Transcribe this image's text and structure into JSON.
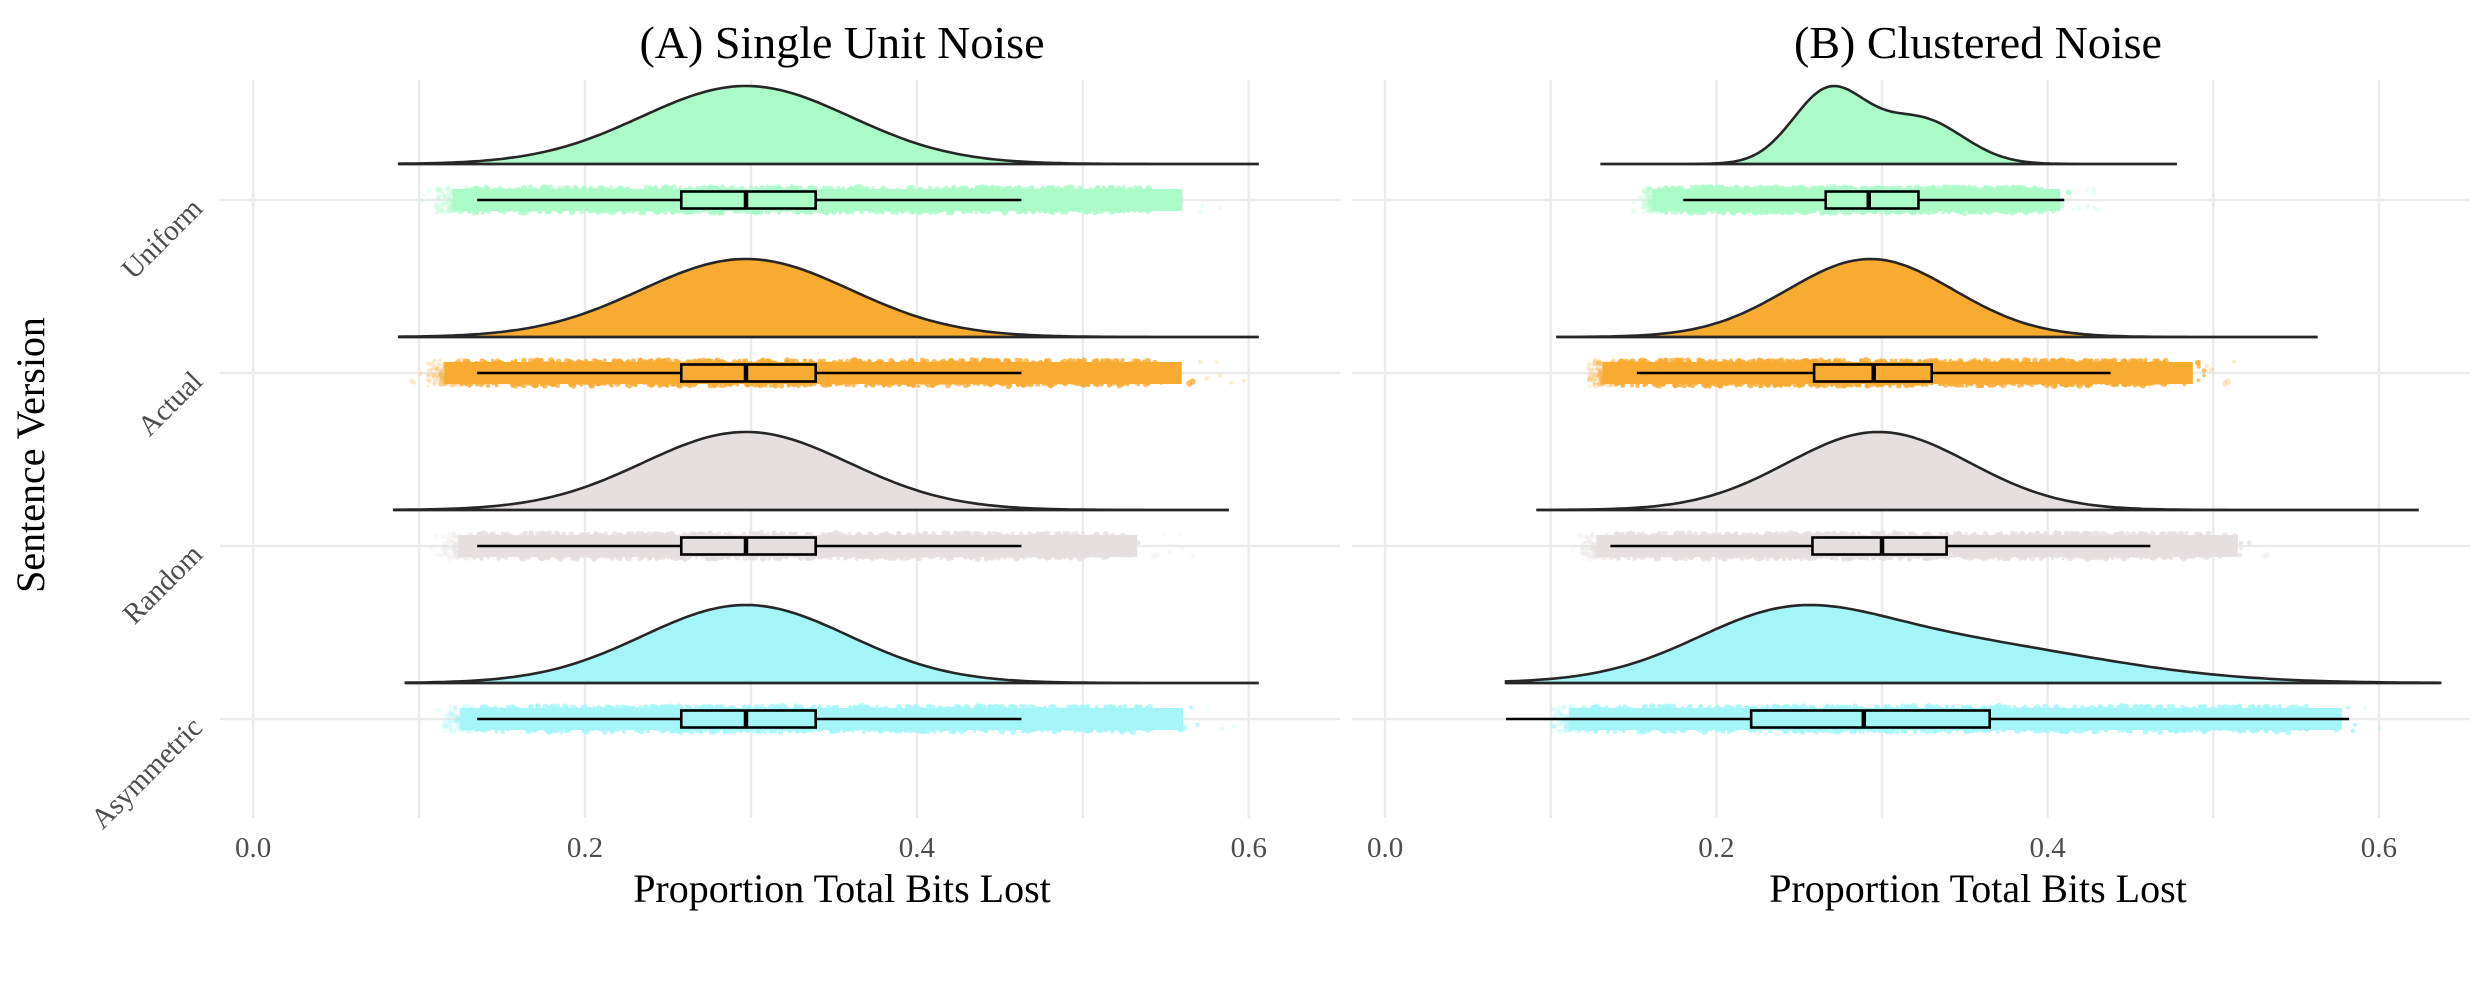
{
  "chart_data": {
    "type": "raincloud",
    "ylabel": "Sentence Version",
    "categories": [
      "Uniform",
      "Actual",
      "Random",
      "Asymmetric"
    ],
    "colors": {
      "Uniform": "#abfbc9",
      "Actual": "#f7ab31",
      "Random": "#e6dfe0",
      "Asymmetric": "#a4f5f8"
    },
    "grid": true,
    "panels": [
      {
        "title": "(A) Single Unit Noise",
        "xlabel": "Proportion Total Bits Lost",
        "xticks": [
          "0.0",
          "0.2",
          "0.4",
          "0.6"
        ],
        "xlim": [
          -0.02,
          0.655
        ],
        "groups": [
          {
            "name": "Uniform",
            "density_range": [
              0.088,
              0.606
            ],
            "points_range": [
              0.1,
              0.6
            ],
            "components": [
              {
                "mean": 0.297,
                "sd": 0.063,
                "weight": 1
              }
            ],
            "box": {
              "whisker_low": 0.135,
              "q1": 0.258,
              "median": 0.297,
              "q3": 0.339,
              "whisker_high": 0.463
            }
          },
          {
            "name": "Actual",
            "density_range": [
              0.088,
              0.606
            ],
            "points_range": [
              0.095,
              0.6
            ],
            "components": [
              {
                "mean": 0.297,
                "sd": 0.063,
                "weight": 1
              }
            ],
            "box": {
              "whisker_low": 0.135,
              "q1": 0.258,
              "median": 0.297,
              "q3": 0.339,
              "whisker_high": 0.463
            }
          },
          {
            "name": "Random",
            "density_range": [
              0.085,
              0.588
            ],
            "points_range": [
              0.105,
              0.57
            ],
            "components": [
              {
                "mean": 0.297,
                "sd": 0.062,
                "weight": 1
              }
            ],
            "box": {
              "whisker_low": 0.135,
              "q1": 0.258,
              "median": 0.297,
              "q3": 0.339,
              "whisker_high": 0.463
            }
          },
          {
            "name": "Asymmetric",
            "density_range": [
              0.092,
              0.606
            ],
            "points_range": [
              0.105,
              0.6
            ],
            "components": [
              {
                "mean": 0.297,
                "sd": 0.062,
                "weight": 1
              }
            ],
            "box": {
              "whisker_low": 0.135,
              "q1": 0.258,
              "median": 0.297,
              "q3": 0.339,
              "whisker_high": 0.463
            }
          }
        ]
      },
      {
        "title": "(B) Clustered Noise",
        "xlabel": "Proportion Total Bits Lost",
        "xticks": [
          "0.0",
          "0.2",
          "0.4",
          "0.6"
        ],
        "xlim": [
          -0.02,
          0.655
        ],
        "groups": [
          {
            "name": "Uniform",
            "density_range": [
              0.13,
              0.478
            ],
            "points_range": [
              0.15,
              0.43
            ],
            "components": [
              {
                "mean": 0.268,
                "sd": 0.022,
                "weight": 0.58
              },
              {
                "mean": 0.323,
                "sd": 0.026,
                "weight": 0.42
              }
            ],
            "box": {
              "whisker_low": 0.18,
              "q1": 0.266,
              "median": 0.292,
              "q3": 0.322,
              "whisker_high": 0.41
            }
          },
          {
            "name": "Actual",
            "density_range": [
              0.104,
              0.563
            ],
            "points_range": [
              0.115,
              0.52
            ],
            "components": [
              {
                "mean": 0.293,
                "sd": 0.05,
                "weight": 1
              }
            ],
            "box": {
              "whisker_low": 0.152,
              "q1": 0.259,
              "median": 0.295,
              "q3": 0.33,
              "whisker_high": 0.438
            }
          },
          {
            "name": "Random",
            "density_range": [
              0.092,
              0.624
            ],
            "points_range": [
              0.11,
              0.55
            ],
            "components": [
              {
                "mean": 0.298,
                "sd": 0.055,
                "weight": 1
              }
            ],
            "box": {
              "whisker_low": 0.136,
              "q1": 0.258,
              "median": 0.3,
              "q3": 0.339,
              "whisker_high": 0.462
            }
          },
          {
            "name": "Asymmetric",
            "density_range": [
              0.073,
              0.637
            ],
            "points_range": [
              0.09,
              0.62
            ],
            "components": [
              {
                "mean": 0.24,
                "sd": 0.055,
                "weight": 0.4
              },
              {
                "mean": 0.33,
                "sd": 0.095,
                "weight": 0.6
              }
            ],
            "box": {
              "whisker_low": 0.073,
              "q1": 0.221,
              "median": 0.289,
              "q3": 0.365,
              "whisker_high": 0.582
            }
          }
        ]
      }
    ]
  }
}
